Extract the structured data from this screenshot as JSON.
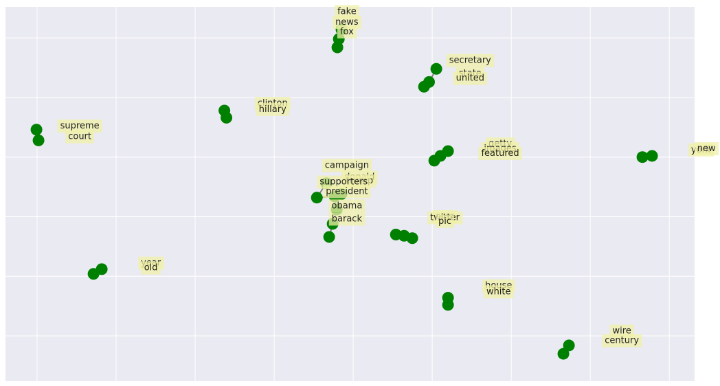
{
  "chart_data": {
    "type": "scatter",
    "title": "",
    "xlabel": "",
    "ylabel": "",
    "grid": true,
    "legend": "none",
    "xlim": [
      -0.2,
      4.16
    ],
    "ylim": [
      -0.38,
      2.76
    ],
    "x_gridlines": [
      0,
      0.5,
      1,
      1.5,
      2,
      2.5,
      3,
      3.5,
      4
    ],
    "y_gridlines": [
      0,
      0.5,
      1,
      1.5,
      2,
      2.5
    ],
    "colors": {
      "background": "#eaeaf2",
      "grid": "#ffffff",
      "point": "#008000",
      "edge": "#808080",
      "label_box": "#f0f0a8"
    },
    "points": [
      {
        "word": "fake",
        "x": 1.926,
        "y": 2.57
      },
      {
        "word": "news",
        "x": 1.909,
        "y": 2.49
      },
      {
        "word": "fox",
        "x": 1.9,
        "y": 2.42
      },
      {
        "word": "secretary",
        "x": 2.526,
        "y": 2.24
      },
      {
        "word": "state",
        "x": 2.48,
        "y": 2.13
      },
      {
        "word": "united",
        "x": 2.448,
        "y": 2.09
      },
      {
        "word": "clinton",
        "x": 1.185,
        "y": 1.89
      },
      {
        "word": "hillary",
        "x": 1.198,
        "y": 1.83
      },
      {
        "word": "supreme",
        "x": -0.004,
        "y": 1.73
      },
      {
        "word": "court",
        "x": 0.009,
        "y": 1.64
      },
      {
        "word": "getty",
        "x": 2.6,
        "y": 1.55
      },
      {
        "word": "images",
        "x": 2.552,
        "y": 1.51
      },
      {
        "word": "featured",
        "x": 2.513,
        "y": 1.47
      },
      {
        "word": "york",
        "x": 3.83,
        "y": 1.5
      },
      {
        "word": "new",
        "x": 3.891,
        "y": 1.51
      },
      {
        "word": "campaign",
        "x": 1.83,
        "y": 1.28
      },
      {
        "word": "donald",
        "x": 1.926,
        "y": 1.19
      },
      {
        "word": "trump",
        "x": 1.883,
        "y": 1.17
      },
      {
        "word": "supporters",
        "x": 1.77,
        "y": 1.16
      },
      {
        "word": "president",
        "x": 1.896,
        "y": 1.06
      },
      {
        "word": "obama",
        "x": 1.87,
        "y": 0.94
      },
      {
        "word": "barack",
        "x": 1.848,
        "y": 0.83
      },
      {
        "word": "com",
        "x": 2.27,
        "y": 0.85
      },
      {
        "word": "twitter",
        "x": 2.322,
        "y": 0.84
      },
      {
        "word": "pic",
        "x": 2.374,
        "y": 0.82
      },
      {
        "word": "year",
        "x": 0.409,
        "y": 0.56
      },
      {
        "word": "old",
        "x": 0.357,
        "y": 0.52
      },
      {
        "word": "house",
        "x": 2.6,
        "y": 0.32
      },
      {
        "word": "white",
        "x": 2.6,
        "y": 0.26
      },
      {
        "word": "wire",
        "x": 3.365,
        "y": -0.08
      },
      {
        "word": "century",
        "x": 3.33,
        "y": -0.15
      }
    ],
    "labels": [
      {
        "text": "fake",
        "x": 1.96,
        "y": 2.72
      },
      {
        "text": "news",
        "x": 1.96,
        "y": 2.63
      },
      {
        "text": "fox",
        "x": 1.96,
        "y": 2.55
      },
      {
        "text": "secretary",
        "x": 2.74,
        "y": 2.31
      },
      {
        "text": "state",
        "x": 2.74,
        "y": 2.2
      },
      {
        "text": "united",
        "x": 2.74,
        "y": 2.16
      },
      {
        "text": "clinton",
        "x": 1.49,
        "y": 1.95
      },
      {
        "text": "hillary",
        "x": 1.49,
        "y": 1.9
      },
      {
        "text": "supreme",
        "x": 0.27,
        "y": 1.76
      },
      {
        "text": "court",
        "x": 0.27,
        "y": 1.67
      },
      {
        "text": "getty",
        "x": 2.93,
        "y": 1.61
      },
      {
        "text": "images",
        "x": 2.93,
        "y": 1.57
      },
      {
        "text": "featured",
        "x": 2.93,
        "y": 1.53
      },
      {
        "text": "york",
        "x": 4.2,
        "y": 1.56
      },
      {
        "text": "new",
        "x": 4.24,
        "y": 1.57
      },
      {
        "text": "campaign",
        "x": 1.96,
        "y": 1.43
      },
      {
        "text": "donald",
        "x": 2.04,
        "y": 1.33
      },
      {
        "text": "trump",
        "x": 2.04,
        "y": 1.3
      },
      {
        "text": "supporters",
        "x": 1.94,
        "y": 1.29
      },
      {
        "text": "president",
        "x": 1.96,
        "y": 1.21
      },
      {
        "text": "obama",
        "x": 1.96,
        "y": 1.09
      },
      {
        "text": "barack",
        "x": 1.96,
        "y": 0.98
      },
      {
        "text": "com",
        "x": 2.58,
        "y": 1.0
      },
      {
        "text": "twitter",
        "x": 2.58,
        "y": 0.99
      },
      {
        "text": "pic",
        "x": 2.58,
        "y": 0.96
      },
      {
        "text": "year",
        "x": 0.72,
        "y": 0.61
      },
      {
        "text": "old",
        "x": 0.72,
        "y": 0.57
      },
      {
        "text": "house",
        "x": 2.92,
        "y": 0.42
      },
      {
        "text": "white",
        "x": 2.92,
        "y": 0.37
      },
      {
        "text": "wire",
        "x": 3.7,
        "y": 0.04
      },
      {
        "text": "century",
        "x": 3.7,
        "y": -0.04
      }
    ],
    "edges": [
      [
        "fake",
        "news"
      ],
      [
        "news",
        "fox"
      ],
      [
        "secretary",
        "state"
      ],
      [
        "state",
        "united"
      ],
      [
        "clinton",
        "hillary"
      ],
      [
        "supreme",
        "court"
      ],
      [
        "getty",
        "images"
      ],
      [
        "images",
        "featured"
      ],
      [
        "york",
        "new"
      ],
      [
        "campaign",
        "supporters"
      ],
      [
        "supporters",
        "trump"
      ],
      [
        "trump",
        "donald"
      ],
      [
        "trump",
        "president"
      ],
      [
        "president",
        "obama"
      ],
      [
        "obama",
        "barack"
      ],
      [
        "com",
        "twitter"
      ],
      [
        "twitter",
        "pic"
      ],
      [
        "year",
        "old"
      ],
      [
        "house",
        "white"
      ],
      [
        "wire",
        "century"
      ]
    ]
  }
}
